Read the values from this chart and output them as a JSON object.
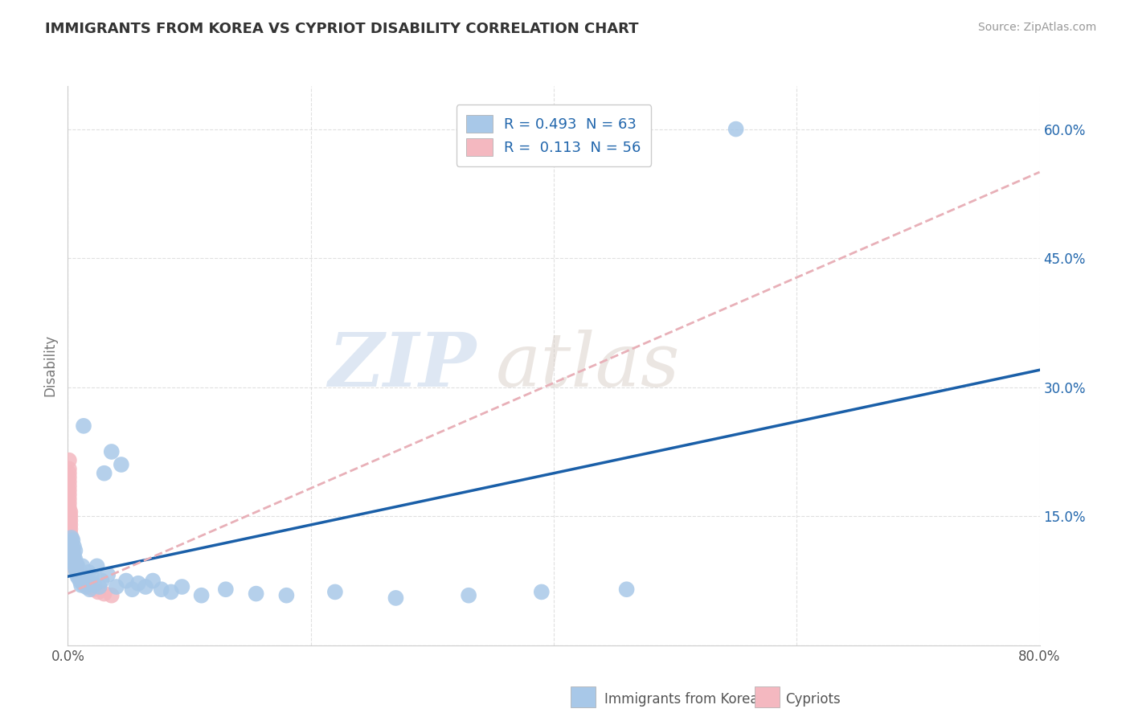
{
  "title": "IMMIGRANTS FROM KOREA VS CYPRIOT DISABILITY CORRELATION CHART",
  "source": "Source: ZipAtlas.com",
  "xlabel": "",
  "ylabel": "Disability",
  "xlim": [
    0.0,
    0.8
  ],
  "ylim": [
    0.0,
    0.65
  ],
  "xticks": [
    0.0,
    0.2,
    0.4,
    0.6,
    0.8
  ],
  "yticks": [
    0.0,
    0.15,
    0.3,
    0.45,
    0.6
  ],
  "xticklabels": [
    "0.0%",
    "",
    "",
    "",
    "80.0%"
  ],
  "right_yticklabels": [
    "",
    "15.0%",
    "30.0%",
    "45.0%",
    "60.0%"
  ],
  "legend_korea": "Immigrants from Korea",
  "legend_cypriots": "Cypriots",
  "r_korea": 0.493,
  "n_korea": 63,
  "r_cypriots": 0.113,
  "n_cypriots": 56,
  "korea_color": "#a8c8e8",
  "cypriot_color": "#f4b8c0",
  "korea_line_color": "#1a5fa8",
  "cypriot_line_color": "#e8b0b8",
  "background_color": "#ffffff",
  "grid_color": "#cccccc",
  "watermark_zip": "ZIP",
  "watermark_atlas": "atlas",
  "korea_line_x0": 0.0,
  "korea_line_y0": 0.08,
  "korea_line_x1": 0.8,
  "korea_line_y1": 0.32,
  "cypriot_line_x0": 0.0,
  "cypriot_line_y0": 0.06,
  "cypriot_line_x1": 0.8,
  "cypriot_line_y1": 0.55,
  "korea_x": [
    0.001,
    0.001,
    0.002,
    0.002,
    0.003,
    0.003,
    0.003,
    0.004,
    0.004,
    0.004,
    0.005,
    0.005,
    0.005,
    0.006,
    0.006,
    0.006,
    0.007,
    0.007,
    0.008,
    0.008,
    0.009,
    0.009,
    0.01,
    0.01,
    0.011,
    0.011,
    0.012,
    0.012,
    0.013,
    0.014,
    0.015,
    0.016,
    0.017,
    0.018,
    0.019,
    0.02,
    0.022,
    0.024,
    0.026,
    0.028,
    0.03,
    0.033,
    0.036,
    0.04,
    0.044,
    0.048,
    0.053,
    0.058,
    0.064,
    0.07,
    0.077,
    0.085,
    0.094,
    0.11,
    0.13,
    0.155,
    0.18,
    0.22,
    0.27,
    0.33,
    0.39,
    0.46,
    0.55
  ],
  "korea_y": [
    0.11,
    0.12,
    0.105,
    0.115,
    0.108,
    0.118,
    0.125,
    0.1,
    0.112,
    0.122,
    0.095,
    0.105,
    0.115,
    0.09,
    0.1,
    0.11,
    0.085,
    0.095,
    0.08,
    0.092,
    0.078,
    0.088,
    0.075,
    0.085,
    0.07,
    0.082,
    0.092,
    0.072,
    0.255,
    0.078,
    0.068,
    0.075,
    0.085,
    0.065,
    0.072,
    0.08,
    0.07,
    0.092,
    0.068,
    0.075,
    0.2,
    0.082,
    0.225,
    0.068,
    0.21,
    0.075,
    0.065,
    0.072,
    0.068,
    0.075,
    0.065,
    0.062,
    0.068,
    0.058,
    0.065,
    0.06,
    0.058,
    0.062,
    0.055,
    0.058,
    0.062,
    0.065,
    0.6
  ],
  "cypriot_x": [
    0.001,
    0.001,
    0.001,
    0.001,
    0.001,
    0.001,
    0.001,
    0.001,
    0.001,
    0.001,
    0.001,
    0.001,
    0.001,
    0.001,
    0.001,
    0.001,
    0.001,
    0.001,
    0.001,
    0.001,
    0.002,
    0.002,
    0.002,
    0.002,
    0.002,
    0.002,
    0.002,
    0.002,
    0.002,
    0.002,
    0.003,
    0.003,
    0.003,
    0.003,
    0.003,
    0.004,
    0.004,
    0.004,
    0.005,
    0.005,
    0.006,
    0.006,
    0.007,
    0.007,
    0.008,
    0.009,
    0.01,
    0.011,
    0.012,
    0.013,
    0.015,
    0.018,
    0.021,
    0.025,
    0.03,
    0.036
  ],
  "cypriot_y": [
    0.115,
    0.12,
    0.125,
    0.13,
    0.135,
    0.14,
    0.145,
    0.15,
    0.155,
    0.16,
    0.165,
    0.17,
    0.175,
    0.18,
    0.185,
    0.19,
    0.195,
    0.2,
    0.205,
    0.215,
    0.11,
    0.115,
    0.12,
    0.125,
    0.13,
    0.135,
    0.14,
    0.145,
    0.15,
    0.155,
    0.105,
    0.11,
    0.115,
    0.12,
    0.125,
    0.1,
    0.105,
    0.11,
    0.095,
    0.1,
    0.09,
    0.095,
    0.088,
    0.092,
    0.085,
    0.082,
    0.08,
    0.078,
    0.075,
    0.072,
    0.07,
    0.068,
    0.065,
    0.062,
    0.06,
    0.058
  ]
}
